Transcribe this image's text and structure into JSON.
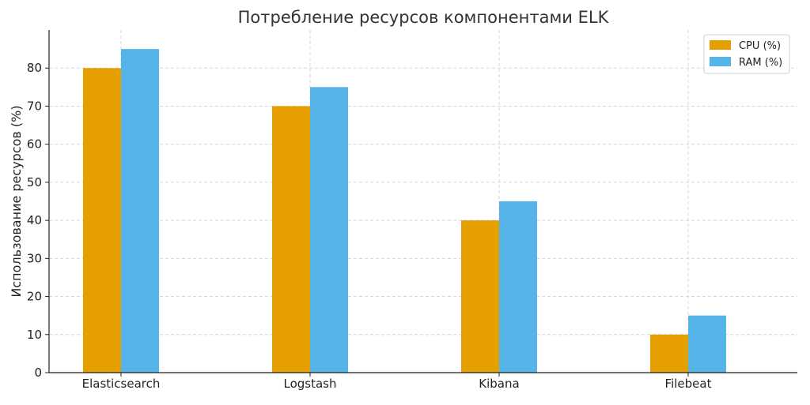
{
  "chart_data": {
    "type": "bar",
    "title": "Потребление ресурсов компонентами ELK",
    "xlabel": "",
    "ylabel": "Использование ресурсов (%)",
    "categories": [
      "Elasticsearch",
      "Logstash",
      "Kibana",
      "Filebeat"
    ],
    "series": [
      {
        "name": "CPU (%)",
        "values": [
          80,
          70,
          40,
          10
        ],
        "color": "#E69F00"
      },
      {
        "name": "RAM (%)",
        "values": [
          85,
          75,
          45,
          15
        ],
        "color": "#56B4E9"
      }
    ],
    "ylim": [
      0,
      90
    ],
    "yticks": [
      0,
      10,
      20,
      30,
      40,
      50,
      60,
      70,
      80
    ],
    "grid": true,
    "legend_position": "top-right"
  }
}
